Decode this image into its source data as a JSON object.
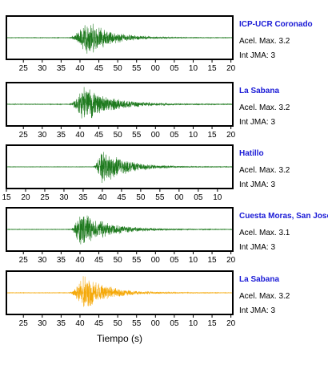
{
  "chart_data": {
    "type": "line",
    "xlabel": "Tiempo (s)",
    "panels": [
      {
        "station": "ICP-UCR Coronado",
        "acel_label": "Acel. Max. 3.2",
        "int_label": "Int JMA: 3",
        "color": "#1e7a1e",
        "tick_labels": [
          "25",
          "30",
          "35",
          "40",
          "45",
          "50",
          "55",
          "00",
          "05",
          "10",
          "15",
          "20"
        ],
        "x_start": 25,
        "x_step": 5,
        "x_range": [
          20.5,
          80.5
        ],
        "onset": 37,
        "peak": 42,
        "decay": 6,
        "noise": 0.015,
        "amp": 1.0
      },
      {
        "station": "La Sabana",
        "acel_label": "Acel. Max. 3.2",
        "int_label": "Int JMA: 3",
        "color": "#1e7a1e",
        "tick_labels": [
          "25",
          "30",
          "35",
          "40",
          "45",
          "50",
          "55",
          "00",
          "05",
          "10",
          "15",
          "20"
        ],
        "x_start": 25,
        "x_step": 5,
        "x_range": [
          20.5,
          80.5
        ],
        "onset": 37,
        "peak": 41,
        "decay": 7,
        "noise": 0.02,
        "amp": 1.0
      },
      {
        "station": "Hatillo",
        "acel_label": "Acel. Max. 3.2",
        "int_label": "Int JMA: 3",
        "color": "#1e7a1e",
        "tick_labels": [
          "15",
          "20",
          "25",
          "30",
          "35",
          "40",
          "45",
          "50",
          "55",
          "00",
          "05",
          "10"
        ],
        "x_start": 15,
        "x_step": 5,
        "x_range": [
          15,
          74
        ],
        "onset": 37.5,
        "peak": 40,
        "decay": 6,
        "noise": 0.012,
        "amp": 1.0
      },
      {
        "station": "Cuesta Moras, San Jose",
        "acel_label": "Acel. Max. 3.1",
        "int_label": "Int JMA: 3",
        "color": "#1e7a1e",
        "tick_labels": [
          "25",
          "30",
          "35",
          "40",
          "45",
          "50",
          "55",
          "00",
          "05",
          "10",
          "15",
          "20"
        ],
        "x_start": 25,
        "x_step": 5,
        "x_range": [
          20.5,
          80.5
        ],
        "onset": 37.5,
        "peak": 40,
        "decay": 7,
        "noise": 0.015,
        "amp": 1.0
      },
      {
        "station": "La Sabana",
        "acel_label": "Acel. Max. 3.2",
        "int_label": "Int JMA: 3",
        "color": "#f5a90a",
        "tick_labels": [
          "25",
          "30",
          "35",
          "40",
          "45",
          "50",
          "55",
          "00",
          "05",
          "10",
          "15",
          "20"
        ],
        "x_start": 25,
        "x_step": 5,
        "x_range": [
          20.5,
          80.5
        ],
        "onset": 37,
        "peak": 41,
        "decay": 6,
        "noise": 0.015,
        "amp": 1.0
      }
    ]
  }
}
